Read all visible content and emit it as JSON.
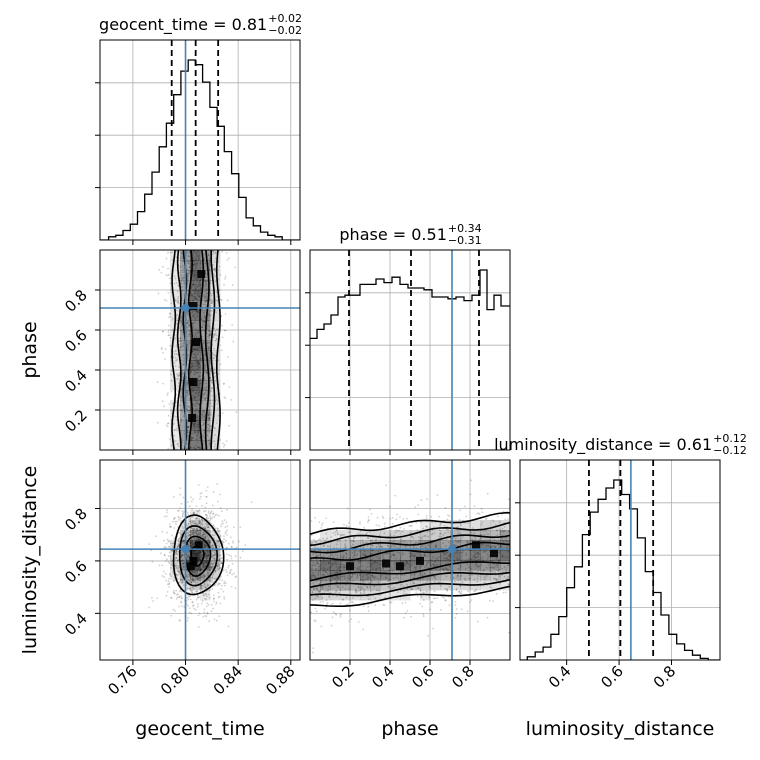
{
  "colors": {
    "truth": "#4682b4",
    "hist": "#000000",
    "grid": "#b0b0b0",
    "density": "#000000"
  },
  "chart_data": {
    "type": "corner",
    "grid": true,
    "parameters": [
      "geocent_time",
      "phase",
      "luminosity_distance"
    ],
    "truths": {
      "geocent_time": 0.8,
      "phase": 0.71,
      "luminosity_distance": 0.645
    },
    "ranges": {
      "geocent_time": [
        0.735,
        0.887
      ],
      "phase": [
        0.0,
        1.0
      ],
      "luminosity_distance": [
        0.222,
        0.985
      ]
    },
    "ticks": {
      "geocent_time": [
        0.76,
        0.8,
        0.84,
        0.88
      ],
      "phase": [
        0.2,
        0.4,
        0.6,
        0.8
      ],
      "luminosity_distance": [
        0.4,
        0.6,
        0.8
      ]
    },
    "tick_labels": {
      "geocent_time": [
        "0.76",
        "0.80",
        "0.84",
        "0.88"
      ],
      "phase": [
        "0.2",
        "0.4",
        "0.6",
        "0.8"
      ],
      "luminosity_distance": [
        "0.4",
        "0.6",
        "0.8"
      ]
    },
    "titles": [
      {
        "param": "geocent_time",
        "prefix": "geocent_time = 0.81",
        "sup": "+0.02",
        "sub": "−0.02"
      },
      {
        "param": "phase",
        "prefix": "phase = 0.51",
        "sup": "+0.34",
        "sub": "−0.31"
      },
      {
        "param": "luminosity_distance",
        "prefix": "luminosity_distance = 0.61",
        "sup": "+0.12",
        "sub": "−0.12"
      }
    ],
    "quantiles": {
      "geocent_time": [
        0.7895,
        0.8077,
        0.8248
      ],
      "phase": [
        0.195,
        0.505,
        0.845
      ],
      "luminosity_distance": [
        0.485,
        0.605,
        0.73
      ]
    },
    "histograms": {
      "geocent_time": {
        "edges": [
          0.735,
          0.7415,
          0.747,
          0.7525,
          0.758,
          0.7635,
          0.769,
          0.7745,
          0.78,
          0.7855,
          0.791,
          0.7965,
          0.802,
          0.8075,
          0.813,
          0.8185,
          0.824,
          0.8295,
          0.835,
          0.8405,
          0.846,
          0.8515,
          0.857,
          0.8625,
          0.868,
          0.8735,
          0.879,
          0.887
        ],
        "counts": [
          0,
          2,
          3,
          6,
          10,
          18,
          29,
          43,
          59,
          74,
          92,
          107,
          114,
          111,
          100,
          84,
          72,
          56,
          42,
          27,
          14,
          9,
          5,
          3,
          2,
          0,
          0
        ]
      },
      "phase": {
        "edges": [
          0.0,
          0.035,
          0.07,
          0.105,
          0.14,
          0.175,
          0.21,
          0.25,
          0.29,
          0.33,
          0.37,
          0.41,
          0.45,
          0.49,
          0.53,
          0.57,
          0.61,
          0.65,
          0.69,
          0.73,
          0.77,
          0.81,
          0.85,
          0.885,
          0.92,
          0.955,
          1.0
        ],
        "counts": [
          0.62,
          0.67,
          0.7,
          0.75,
          0.85,
          0.86,
          0.86,
          0.92,
          0.92,
          0.95,
          0.93,
          0.96,
          0.92,
          0.9,
          0.9,
          0.89,
          0.85,
          0.85,
          0.84,
          0.85,
          0.83,
          0.86,
          1.0,
          0.78,
          0.86,
          0.8
        ]
      },
      "luminosity_distance": {
        "edges": [
          0.222,
          0.25,
          0.28,
          0.31,
          0.34,
          0.37,
          0.4,
          0.43,
          0.46,
          0.49,
          0.52,
          0.55,
          0.58,
          0.61,
          0.64,
          0.67,
          0.7,
          0.73,
          0.76,
          0.79,
          0.82,
          0.85,
          0.88,
          0.91,
          0.94,
          0.985
        ],
        "counts": [
          0,
          2,
          5,
          8,
          16,
          27,
          45,
          58,
          78,
          92,
          100,
          107,
          112,
          103,
          94,
          76,
          55,
          42,
          28,
          16,
          10,
          6,
          3,
          1,
          0
        ]
      }
    },
    "density": {
      "geocent_time|phase": {
        "x_param": "geocent_time",
        "y_param": "phase",
        "components": [
          {
            "cx": 0.808,
            "cy": 0.5,
            "sx": 0.0085,
            "sy": 0.33
          }
        ],
        "hotspots": [
          [
            0.812,
            0.88
          ],
          [
            0.806,
            0.72
          ],
          [
            0.808,
            0.54
          ],
          [
            0.806,
            0.34
          ],
          [
            0.805,
            0.16
          ]
        ]
      },
      "geocent_time|luminosity_distance": {
        "x_param": "geocent_time",
        "y_param": "luminosity_distance",
        "components": [
          {
            "cx": 0.809,
            "cy": 0.62,
            "sx": 0.0095,
            "sy": 0.075
          }
        ],
        "hotspots": [
          [
            0.806,
            0.6
          ],
          [
            0.81,
            0.66
          ],
          [
            0.804,
            0.58
          ]
        ]
      },
      "phase|luminosity_distance": {
        "x_param": "phase",
        "y_param": "luminosity_distance",
        "components": [
          {
            "cx": 0.5,
            "cy": 0.6,
            "sx": 0.35,
            "sy": 0.07,
            "tilt": 0.07
          }
        ],
        "hotspots": [
          [
            0.2,
            0.58
          ],
          [
            0.38,
            0.59
          ],
          [
            0.45,
            0.58
          ],
          [
            0.83,
            0.66
          ],
          [
            0.92,
            0.63
          ],
          [
            0.55,
            0.6
          ]
        ]
      }
    }
  }
}
